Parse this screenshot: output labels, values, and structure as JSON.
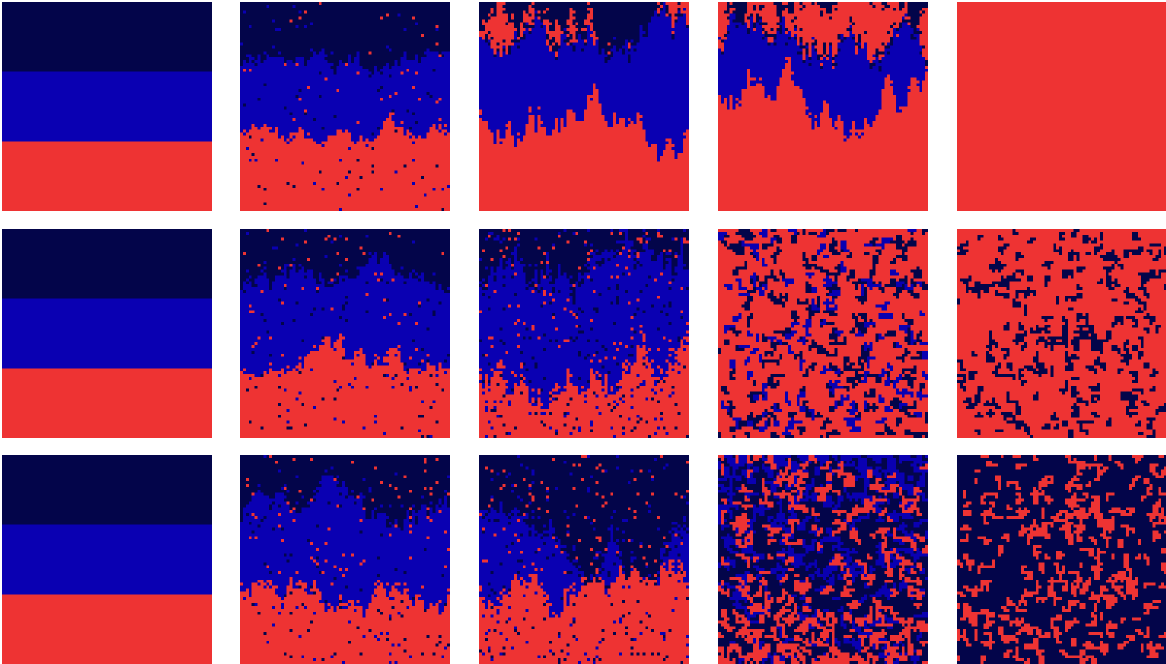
{
  "palette": {
    "navy": "#03054a",
    "blue": "#0a00b2",
    "red": "#ee3333"
  },
  "rows": [
    {
      "panels": [
        {
          "kind": "bands"
        },
        {
          "kind": "rough-bands",
          "roughness": 0.3,
          "noise": 0.04,
          "seed": 11
        },
        {
          "kind": "shrinking",
          "blueCenter": 0.37,
          "blueHalf": 0.16,
          "navyTop": 0.12,
          "roughness": 0.45,
          "seed": 23
        },
        {
          "kind": "shrinking",
          "blueCenter": 0.34,
          "blueHalf": 0.11,
          "navyTop": 0.0,
          "roughness": 0.5,
          "seed": 37
        },
        {
          "kind": "solid",
          "color": "red"
        }
      ]
    },
    {
      "panels": [
        {
          "kind": "bands"
        },
        {
          "kind": "rough-bands",
          "roughness": 0.4,
          "noise": 0.06,
          "seed": 53
        },
        {
          "kind": "rough-bands",
          "roughness": 0.65,
          "noise": 0.12,
          "seed": 67
        },
        {
          "kind": "speckle",
          "base": "red",
          "fractions": {
            "navy": 0.3,
            "blue": 0.16
          },
          "seed": 71
        },
        {
          "kind": "speckle",
          "base": "red",
          "fractions": {
            "navy": 0.3,
            "blue": 0.0
          },
          "seed": 89
        }
      ]
    },
    {
      "panels": [
        {
          "kind": "bands"
        },
        {
          "kind": "rough-bands",
          "roughness": 0.4,
          "noise": 0.06,
          "seed": 97
        },
        {
          "kind": "rough-bands",
          "roughness": 0.6,
          "noise": 0.1,
          "seed": 103
        },
        {
          "kind": "speckle-fade",
          "base": "navy",
          "blueTop": 0.55,
          "redBottom": 0.45,
          "seed": 109
        },
        {
          "kind": "speckle",
          "base": "navy",
          "fractions": {
            "red": 0.4,
            "blue": 0.0
          },
          "seed": 127
        }
      ]
    }
  ]
}
